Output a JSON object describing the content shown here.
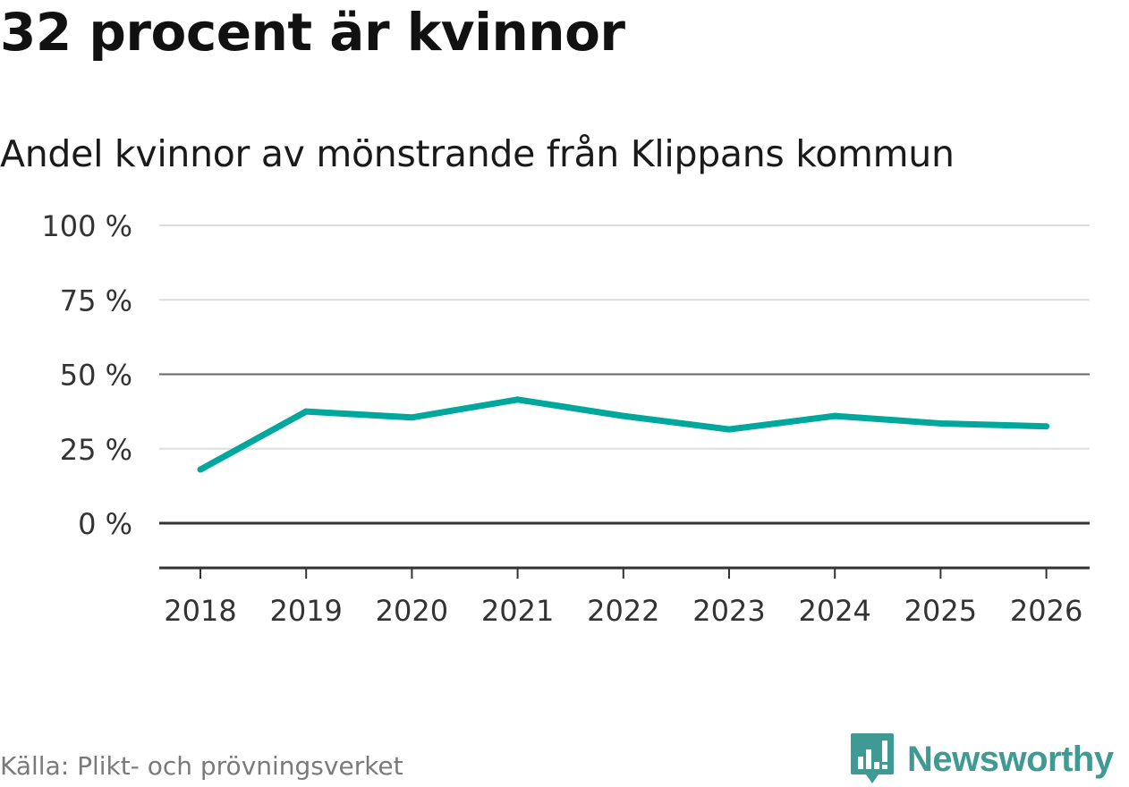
{
  "headline": "32 procent är kvinnor",
  "chart_data": {
    "type": "line",
    "title": "Andel kvinnor av mönstrande från Klippans kommun",
    "xlabel": "",
    "ylabel": "",
    "x": [
      "2018",
      "2019",
      "2020",
      "2021",
      "2022",
      "2023",
      "2024",
      "2025",
      "2026"
    ],
    "series": [
      {
        "name": "Andel kvinnor",
        "values": [
          18,
          37.5,
          35.5,
          41.5,
          36,
          31.5,
          36,
          33.5,
          32.5
        ]
      }
    ],
    "ylim": [
      -15,
      100
    ],
    "yticks": [
      100,
      75,
      50,
      25,
      0
    ],
    "ytick_labels": [
      "100 %",
      "75 %",
      "50 %",
      "25 %",
      "0 %"
    ],
    "grid": true,
    "colors": {
      "line": "#00a79d",
      "grid": "#dddddd",
      "axis": "#333333",
      "mid": "#666666"
    }
  },
  "footer": {
    "source": "Källa: Plikt- och prövningsverket",
    "brand": "Newsworthy",
    "brand_color": "#3f9a93",
    "brand_icon": "bar-chart-speech-bubble-icon"
  }
}
